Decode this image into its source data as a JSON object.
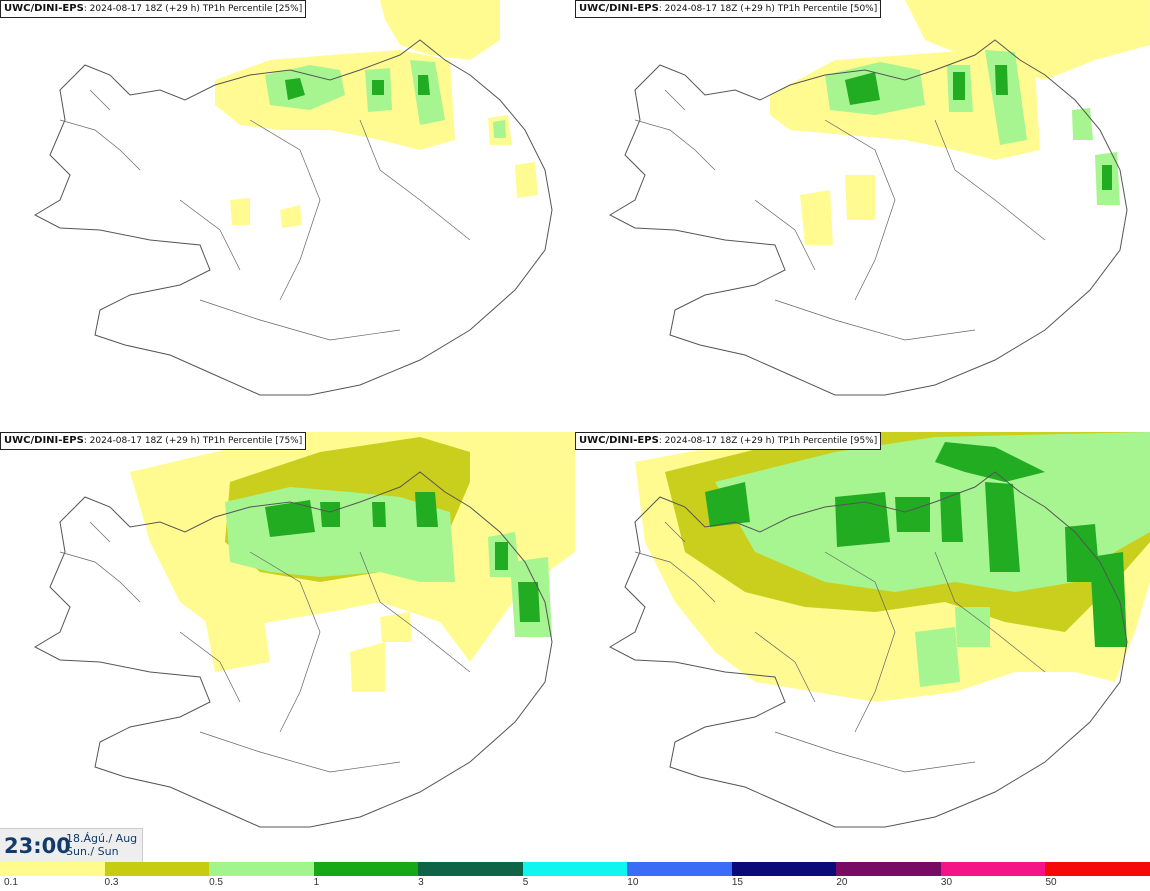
{
  "panels": [
    {
      "title_model": "UWC/DINI-EPS",
      "title_rest": ": 2024-08-17 18Z (+29 h) TP1h Percentile [25%]"
    },
    {
      "title_model": "UWC/DINI-EPS",
      "title_rest": ": 2024-08-17 18Z (+29 h) TP1h Percentile [50%]"
    },
    {
      "title_model": "UWC/DINI-EPS",
      "title_rest": ": 2024-08-17 18Z (+29 h) TP1h Percentile [75%]"
    },
    {
      "title_model": "UWC/DINI-EPS",
      "title_rest": ": 2024-08-17 18Z (+29 h) TP1h Percentile [95%]"
    }
  ],
  "time": {
    "clock": "23:00",
    "date_line": "18.Ágú./ Aug",
    "day_line": "Sun./ Sun"
  },
  "colorbar": {
    "colors": [
      "#fffb8c",
      "#c8cc10",
      "#a2f58c",
      "#17a817",
      "#0e6446",
      "#10f5f0",
      "#3a6cf5",
      "#0a0a78",
      "#780a64",
      "#f51488",
      "#f50a0a"
    ],
    "labels": [
      "0.1",
      "0.3",
      "0.5",
      "1",
      "3",
      "5",
      "10",
      "15",
      "20",
      "30",
      "50"
    ]
  }
}
